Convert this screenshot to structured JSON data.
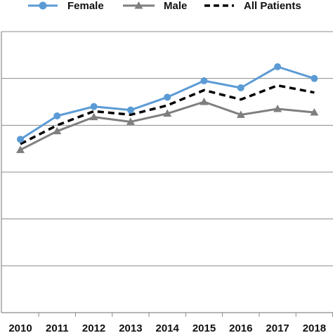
{
  "chart_data": {
    "type": "line",
    "categories": [
      "2010",
      "2011",
      "2012",
      "2013",
      "2014",
      "2015",
      "2016",
      "2017",
      "2018"
    ],
    "series": [
      {
        "name": "Female",
        "values": [
          7.4,
          8.4,
          8.8,
          8.65,
          9.2,
          9.9,
          9.6,
          10.5,
          10.0
        ],
        "color": "#5b9bd5",
        "style": "solid",
        "marker": "circle"
      },
      {
        "name": "Male",
        "values": [
          6.95,
          7.75,
          8.35,
          8.15,
          8.5,
          9.0,
          8.45,
          8.7,
          8.55
        ],
        "color": "#7f7f7f",
        "style": "solid",
        "marker": "triangle"
      },
      {
        "name": "All Patients",
        "values": [
          7.2,
          8.0,
          8.6,
          8.45,
          8.85,
          9.5,
          9.1,
          9.7,
          9.4
        ],
        "color": "#000000",
        "style": "dashed",
        "marker": "none"
      }
    ],
    "ylim": [
      0,
      12
    ],
    "yticks_labeled": false,
    "grid": true,
    "legend": "top"
  }
}
